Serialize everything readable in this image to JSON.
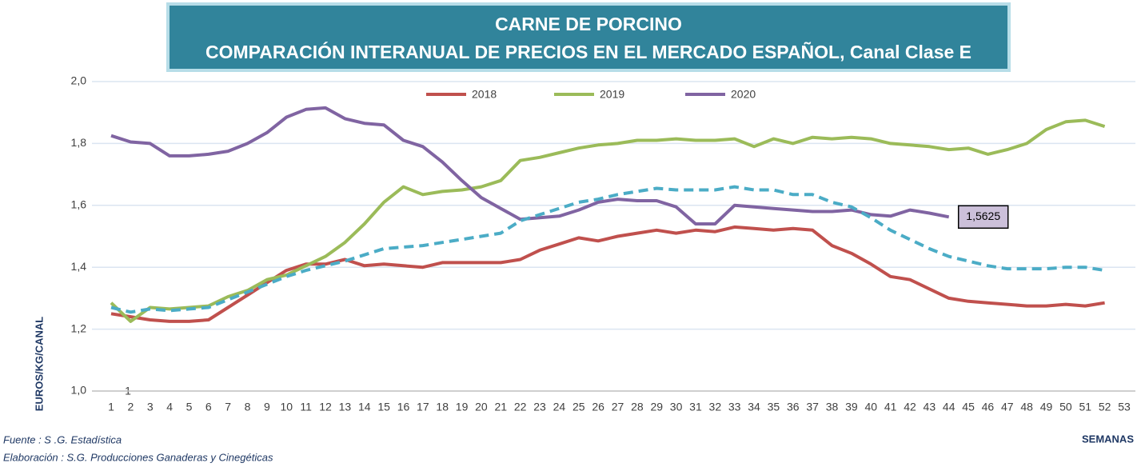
{
  "chart_data": {
    "type": "line",
    "title": "CARNE DE PORCINO",
    "subtitle": "COMPARACIÓN INTERANUAL DE PRECIOS EN EL MERCADO ESPAÑOL, Canal Clase E",
    "y_label": "EUROS/KG/CANAL",
    "x_label": "SEMANAS",
    "annotations": [
      "1"
    ],
    "notes": [
      "Fuente :  S .G. Estadística",
      "Elaboración : S.G. Producciones Ganaderas y Cinegéticas"
    ],
    "legend": "top",
    "grid": true,
    "ylim": [
      1.0,
      2.0
    ],
    "yticks": [
      {
        "value": 1.0,
        "label": "1,0"
      },
      {
        "value": 1.2,
        "label": "1,2"
      },
      {
        "value": 1.4,
        "label": "1,4"
      },
      {
        "value": 1.6,
        "label": "1,6"
      },
      {
        "value": 1.8,
        "label": "1,8"
      },
      {
        "value": 2.0,
        "label": "2,0"
      }
    ],
    "categories": [
      "1",
      "2",
      "3",
      "4",
      "5",
      "6",
      "7",
      "8",
      "9",
      "10",
      "11",
      "12",
      "13",
      "14",
      "15",
      "16",
      "17",
      "18",
      "19",
      "20",
      "21",
      "22",
      "23",
      "24",
      "25",
      "26",
      "27",
      "28",
      "29",
      "30",
      "31",
      "32",
      "33",
      "34",
      "35",
      "36",
      "37",
      "38",
      "39",
      "40",
      "41",
      "42",
      "43",
      "44",
      "45",
      "46",
      "47",
      "48",
      "49",
      "50",
      "51",
      "52",
      "53"
    ],
    "series": [
      {
        "name": "2018",
        "color": "#c0504d",
        "values": [
          1.25,
          1.24,
          1.23,
          1.225,
          1.225,
          1.23,
          1.27,
          1.31,
          1.35,
          1.39,
          1.41,
          1.41,
          1.425,
          1.405,
          1.41,
          1.405,
          1.4,
          1.415,
          1.415,
          1.415,
          1.415,
          1.425,
          1.455,
          1.475,
          1.495,
          1.485,
          1.5,
          1.51,
          1.52,
          1.51,
          1.52,
          1.515,
          1.53,
          1.525,
          1.52,
          1.525,
          1.52,
          1.47,
          1.445,
          1.41,
          1.37,
          1.36,
          1.33,
          1.3,
          1.29,
          1.285,
          1.28,
          1.275,
          1.275,
          1.28,
          1.275,
          1.285,
          null
        ]
      },
      {
        "name": "2019",
        "color": "#9bbb59",
        "values": [
          1.285,
          1.225,
          1.27,
          1.265,
          1.27,
          1.275,
          1.305,
          1.325,
          1.36,
          1.375,
          1.405,
          1.435,
          1.48,
          1.54,
          1.61,
          1.66,
          1.635,
          1.645,
          1.65,
          1.66,
          1.68,
          1.745,
          1.755,
          1.77,
          1.785,
          1.795,
          1.8,
          1.81,
          1.81,
          1.815,
          1.81,
          1.81,
          1.815,
          1.79,
          1.815,
          1.8,
          1.82,
          1.815,
          1.82,
          1.815,
          1.8,
          1.795,
          1.79,
          1.78,
          1.785,
          1.765,
          1.78,
          1.8,
          1.845,
          1.87,
          1.875,
          1.855,
          null
        ]
      },
      {
        "name": "2020",
        "color": "#8064a2",
        "values": [
          1.825,
          1.805,
          1.8,
          1.76,
          1.76,
          1.765,
          1.775,
          1.8,
          1.835,
          1.885,
          1.91,
          1.915,
          1.88,
          1.865,
          1.86,
          1.81,
          1.79,
          1.74,
          1.68,
          1.625,
          1.59,
          1.555,
          1.56,
          1.565,
          1.585,
          1.61,
          1.62,
          1.615,
          1.615,
          1.595,
          1.54,
          1.54,
          1.6,
          1.595,
          1.59,
          1.585,
          1.58,
          1.58,
          1.585,
          1.57,
          1.565,
          1.585,
          1.575,
          1.5625,
          null,
          null,
          null,
          null,
          null,
          null,
          null,
          null,
          null
        ],
        "value_labels": [
          null,
          null,
          null,
          null,
          null,
          null,
          null,
          null,
          null,
          null,
          null,
          null,
          null,
          null,
          null,
          null,
          null,
          null,
          null,
          null,
          null,
          null,
          null,
          null,
          null,
          null,
          null,
          null,
          null,
          null,
          null,
          null,
          null,
          null,
          null,
          null,
          null,
          null,
          null,
          null,
          null,
          null,
          null,
          "1,5625",
          null,
          null,
          null,
          null,
          null,
          null,
          null,
          null,
          null
        ]
      },
      {
        "color": "#4bacc6",
        "dashed": true,
        "values": [
          1.27,
          1.255,
          1.265,
          1.26,
          1.265,
          1.27,
          1.295,
          1.32,
          1.345,
          1.37,
          1.39,
          1.405,
          1.42,
          1.44,
          1.46,
          1.465,
          1.47,
          1.48,
          1.49,
          1.5,
          1.51,
          1.55,
          1.57,
          1.59,
          1.61,
          1.62,
          1.635,
          1.645,
          1.655,
          1.65,
          1.65,
          1.65,
          1.66,
          1.65,
          1.65,
          1.635,
          1.635,
          1.61,
          1.595,
          1.56,
          1.52,
          1.49,
          1.46,
          1.435,
          1.42,
          1.405,
          1.395,
          1.395,
          1.395,
          1.4,
          1.4,
          1.39,
          null
        ]
      }
    ]
  }
}
